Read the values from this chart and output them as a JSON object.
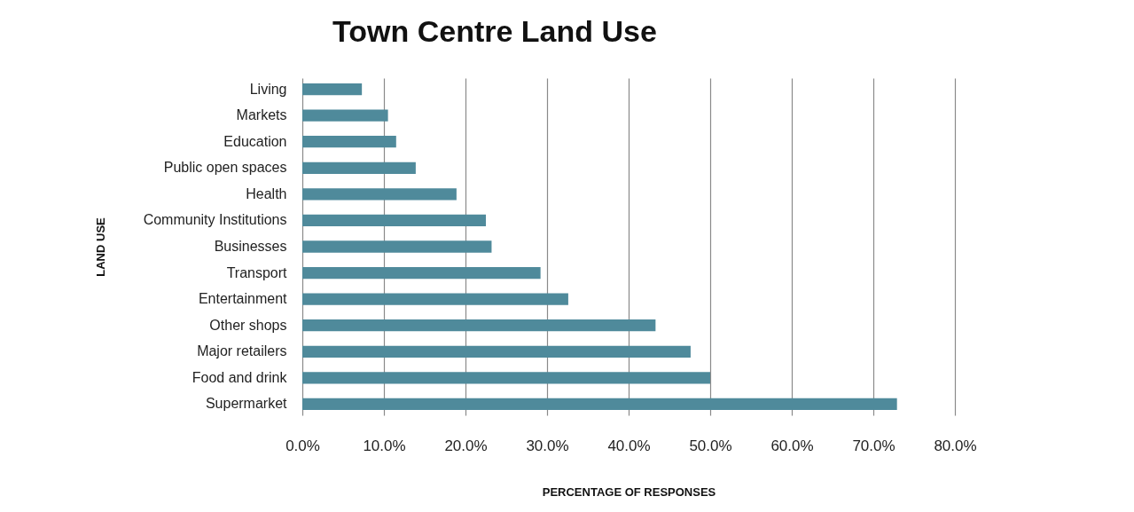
{
  "chart_data": {
    "type": "bar",
    "orientation": "horizontal",
    "title": "Town Centre Land Use",
    "xlabel": "PERCENTAGE OF RESPONSES",
    "ylabel": "LAND USE",
    "categories": [
      "Living",
      "Markets",
      "Education",
      "Public  open spaces",
      "Health",
      "Community Institutions",
      "Businesses",
      "Transport",
      "Entertainment",
      "Other shops",
      "Major retailers",
      "Food and drink",
      "Supermarket"
    ],
    "values": [
      7.3,
      10.5,
      11.5,
      13.9,
      18.9,
      22.5,
      23.2,
      29.2,
      32.6,
      43.3,
      47.6,
      50.0,
      72.9
    ],
    "color": "#4f8a9b",
    "xlim": [
      0,
      80
    ],
    "xticks": [
      {
        "value": 0,
        "label": "0.0%"
      },
      {
        "value": 10,
        "label": "10.0%"
      },
      {
        "value": 20,
        "label": "20.0%"
      },
      {
        "value": 30,
        "label": "30.0%"
      },
      {
        "value": 40,
        "label": "40.0%"
      },
      {
        "value": 50,
        "label": "50.0%"
      },
      {
        "value": 60,
        "label": "60.0%"
      },
      {
        "value": 70,
        "label": "70.0%"
      },
      {
        "value": 80,
        "label": "80.0%"
      }
    ],
    "grid": "x"
  }
}
